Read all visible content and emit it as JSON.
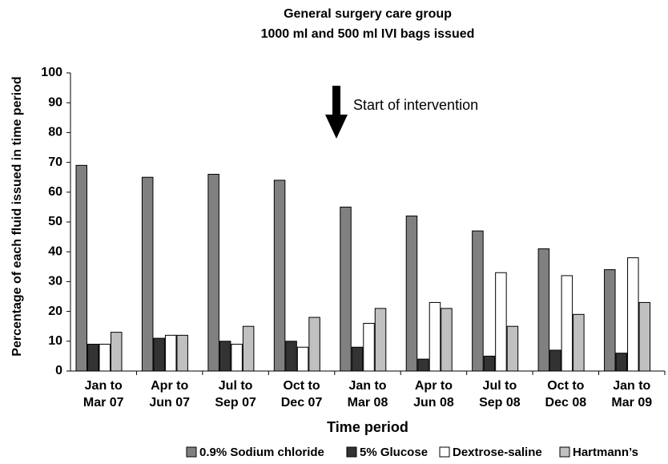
{
  "chart_data": {
    "type": "bar",
    "title": [
      "General surgery care group",
      "1000 ml and 500 ml IVI bags issued"
    ],
    "x_label": "Time period",
    "y_label": "Percentage of each fluid issued in time period",
    "annotation": "Start of intervention",
    "categories": [
      [
        "Jan to",
        "Mar 07"
      ],
      [
        "Apr to",
        "Jun 07"
      ],
      [
        "Jul to",
        "Sep 07"
      ],
      [
        "Oct to",
        "Dec 07"
      ],
      [
        "Jan to",
        "Mar 08"
      ],
      [
        "Apr to",
        "Jun 08"
      ],
      [
        "Jul to",
        "Sep 08"
      ],
      [
        "Oct to",
        "Dec 08"
      ],
      [
        "Jan to",
        "Mar 09"
      ]
    ],
    "series": [
      {
        "name": "0.9% Sodium chloride",
        "color": "#808080",
        "values": [
          69,
          65,
          66,
          64,
          55,
          52,
          47,
          41,
          34
        ]
      },
      {
        "name": "5% Glucose",
        "color": "#333333",
        "values": [
          9,
          11,
          10,
          10,
          8,
          4,
          5,
          7,
          6
        ]
      },
      {
        "name": "Dextrose-saline",
        "color": "#ffffff",
        "values": [
          9,
          12,
          9,
          8,
          16,
          23,
          33,
          32,
          38
        ]
      },
      {
        "name": "Hartmann’s",
        "color": "#c0c0c0",
        "values": [
          13,
          12,
          15,
          18,
          21,
          21,
          15,
          19,
          23
        ]
      }
    ],
    "ylim": [
      0,
      100
    ],
    "yticks": [
      0,
      10,
      20,
      30,
      40,
      50,
      60,
      70,
      80,
      90,
      100
    ]
  }
}
